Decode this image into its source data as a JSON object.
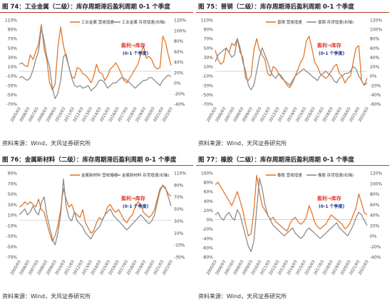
{
  "colors": {
    "orange": "#e2772b",
    "gray": "#8c8c8c",
    "red": "#e03020",
    "navy": "#1f3a8a",
    "accent": "#c0392b"
  },
  "x_ticks": [
    "2005/03",
    "2006/03",
    "2007/03",
    "2008/03",
    "2009/03",
    "2010/03",
    "2011/03",
    "2012/03",
    "2013/03",
    "2014/03",
    "2015/03",
    "2016/03",
    "2017/03",
    "2018/03",
    "2019/03",
    "2020/03",
    "2021/03",
    "2022/03"
  ],
  "chart_data": [
    {
      "type": "line",
      "title": "图 74：工业金属（二级）：库存周期滞后盈利周期 0-1 个季度",
      "source": "资料来源：Wind，天风证券研究所",
      "left_ticks": [
        "110%",
        "90%",
        "70%",
        "50%",
        "30%",
        "10%",
        "-10%",
        "-30%",
        "-50%",
        "-70%"
      ],
      "right_ticks": [
        "120%",
        "100%",
        "80%",
        "60%",
        "40%",
        "20%",
        "0%",
        "-20%",
        "-40%"
      ],
      "ylim_left": [
        -70,
        110
      ],
      "ylim_right": [
        -40,
        120
      ],
      "annotation_red": "盈利→库存",
      "annotation_navy": "(0-1 个季度)",
      "series": [
        {
          "name": "工业金属 营收增速",
          "axis": "left",
          "color": "#e2772b",
          "values": [
            15,
            18,
            12,
            10,
            35,
            25,
            42,
            58,
            100,
            48,
            25,
            -25,
            -40,
            -28,
            50,
            95,
            55,
            30,
            10,
            -12,
            -15,
            8,
            5,
            -5,
            -8,
            -15,
            -25,
            -10,
            15,
            -2,
            -5,
            -20,
            -10,
            5,
            10,
            18,
            8,
            -6,
            -20,
            -25,
            -15,
            -5,
            5,
            15,
            35,
            55,
            28,
            32,
            25,
            10,
            5,
            8,
            75,
            62,
            35,
            12
          ]
        },
        {
          "name": "工业金属 存货增速(右轴)",
          "axis": "right",
          "color": "#8c8c8c",
          "values": [
            10,
            12,
            8,
            5,
            10,
            25,
            45,
            60,
            105,
            80,
            50,
            30,
            -10,
            -30,
            -20,
            5,
            50,
            55,
            30,
            10,
            -5,
            -8,
            -5,
            -10,
            -8,
            -5,
            -15,
            -10,
            -5,
            5,
            5,
            0,
            -10,
            -5,
            0,
            0,
            5,
            10,
            8,
            5,
            0,
            -5,
            -10,
            -5,
            0,
            5,
            5,
            10,
            10,
            5,
            0,
            -5,
            5,
            10,
            15,
            12
          ]
        }
      ]
    },
    {
      "type": "line",
      "title": "图 75：普钢（二级）：库存周期滞后盈利周期 0-1 个季度",
      "source": "资料来源：Wind，天风证券研究所",
      "left_ticks": [
        "110%",
        "90%",
        "70%",
        "50%",
        "30%",
        "10%",
        "-10%",
        "-30%",
        "-50%",
        "-70%"
      ],
      "right_ticks": [
        "120%",
        "100%",
        "80%",
        "60%",
        "40%",
        "20%",
        "0%",
        "-20%",
        "-40%",
        "-60%"
      ],
      "ylim_left": [
        -70,
        110
      ],
      "ylim_right": [
        -60,
        120
      ],
      "annotation_red": "盈利→库存",
      "annotation_navy": "(0-1 个季度)",
      "series": [
        {
          "name": "普钢 营收增速",
          "axis": "left",
          "color": "#e2772b",
          "values": [
            45,
            25,
            15,
            20,
            50,
            40,
            60,
            55,
            70,
            40,
            30,
            -15,
            -20,
            -10,
            45,
            70,
            45,
            35,
            25,
            -5,
            -10,
            10,
            5,
            -5,
            -15,
            -20,
            -30,
            -35,
            -25,
            -10,
            5,
            20,
            30,
            65,
            75,
            50,
            20,
            10,
            -5,
            -10,
            -15,
            -10,
            0,
            10,
            15,
            -5,
            -10,
            -25,
            -15,
            -10,
            20,
            50,
            55,
            -20,
            -30,
            -15
          ]
        },
        {
          "name": "普钢 存货增速(右轴)",
          "axis": "right",
          "color": "#8c8c8c",
          "values": [
            30,
            45,
            50,
            55,
            60,
            50,
            40,
            45,
            80,
            60,
            30,
            10,
            -20,
            -30,
            -20,
            10,
            40,
            60,
            45,
            30,
            10,
            0,
            -5,
            5,
            0,
            -10,
            -15,
            -20,
            -10,
            0,
            5,
            10,
            15,
            10,
            5,
            0,
            -5,
            -10,
            0,
            5,
            10,
            5,
            0,
            -10,
            -15,
            -5,
            0,
            5,
            5,
            10,
            20,
            15,
            0,
            -10,
            -20,
            -15
          ]
        }
      ]
    },
    {
      "type": "line",
      "title": "图 76：金属新材料（二级）：库存周期滞后盈利周期 0-1 个季度",
      "source": "资料来源：Wind，天风证券研究所",
      "left_ticks": [
        "90%",
        "70%",
        "50%",
        "30%",
        "10%",
        "-10%",
        "-30%",
        "-50%",
        "-70%"
      ],
      "right_ticks": [
        "110%",
        "90%",
        "70%",
        "50%",
        "30%",
        "10%",
        "-10%",
        "-30%"
      ],
      "ylim_left": [
        -70,
        90
      ],
      "ylim_right": [
        -30,
        110
      ],
      "annotation_red": "盈利→库存",
      "annotation_navy": "(0-1 个季度)",
      "series": [
        {
          "name": "金属新材料 营收增速",
          "axis": "left",
          "color": "#e2772b",
          "values": [
            25,
            28,
            35,
            30,
            35,
            30,
            25,
            40,
            20,
            15,
            -5,
            -25,
            -40,
            -30,
            -10,
            20,
            60,
            40,
            25,
            30,
            15,
            10,
            5,
            20,
            -5,
            -15,
            -25,
            -20,
            -5,
            5,
            0,
            10,
            25,
            30,
            20,
            15,
            20,
            10,
            0,
            -5,
            5,
            10,
            25,
            35,
            30,
            15,
            10,
            5,
            10,
            20,
            40,
            60,
            65,
            60,
            50,
            45
          ]
        },
        {
          "name": "金属新材料 存货增速(右轴)",
          "axis": "right",
          "color": "#8c8c8c",
          "values": [
            40,
            45,
            50,
            40,
            45,
            55,
            45,
            40,
            60,
            70,
            40,
            20,
            0,
            -10,
            10,
            40,
            100,
            55,
            35,
            30,
            45,
            30,
            25,
            20,
            10,
            5,
            0,
            10,
            15,
            20,
            30,
            40,
            45,
            50,
            40,
            35,
            30,
            25,
            20,
            15,
            20,
            25,
            30,
            35,
            40,
            35,
            30,
            25,
            30,
            40,
            60,
            80,
            90,
            85,
            70,
            55
          ]
        }
      ]
    },
    {
      "type": "line",
      "title": "图 77：橡胶（二级）：库存周期滞后盈利周期 0-1 个季度",
      "source": "资料来源：Wind，天风证券研究所",
      "left_ticks": [
        "100%",
        "80%",
        "60%",
        "40%",
        "20%",
        "0%",
        "-20%",
        "-40%",
        "-60%",
        "-80%"
      ],
      "right_ticks": [
        "120%",
        "100%",
        "80%",
        "60%",
        "40%",
        "20%",
        "0%",
        "-20%",
        "-40%"
      ],
      "ylim_left": [
        -80,
        100
      ],
      "ylim_right": [
        -40,
        120
      ],
      "annotation_red": "盈利→库存",
      "annotation_navy": "(0-1 个季度)",
      "series": [
        {
          "name": "橡胶 营收增速",
          "axis": "left",
          "color": "#e2772b",
          "values": [
            75,
            80,
            70,
            60,
            50,
            40,
            30,
            45,
            60,
            40,
            20,
            -10,
            -35,
            -30,
            20,
            95,
            60,
            30,
            20,
            10,
            0,
            5,
            -5,
            -10,
            -15,
            -20,
            -25,
            -10,
            0,
            5,
            -5,
            -10,
            -5,
            5,
            30,
            15,
            -5,
            -15,
            -20,
            -15,
            -10,
            0,
            10,
            5,
            0,
            -5,
            -10,
            -20,
            -15,
            -5,
            10,
            25,
            55,
            35,
            15,
            10
          ]
        },
        {
          "name": "橡胶 存货增速(右轴)",
          "axis": "right",
          "color": "#8c8c8c",
          "values": [
            40,
            45,
            35,
            30,
            40,
            45,
            35,
            30,
            50,
            40,
            20,
            0,
            -20,
            -30,
            -10,
            50,
            110,
            90,
            60,
            40,
            30,
            20,
            15,
            10,
            5,
            0,
            5,
            10,
            15,
            5,
            0,
            -5,
            0,
            10,
            15,
            10,
            5,
            0,
            -5,
            0,
            5,
            10,
            15,
            20,
            25,
            15,
            10,
            5,
            0,
            10,
            20,
            35,
            45,
            40,
            30,
            20
          ]
        }
      ]
    }
  ]
}
